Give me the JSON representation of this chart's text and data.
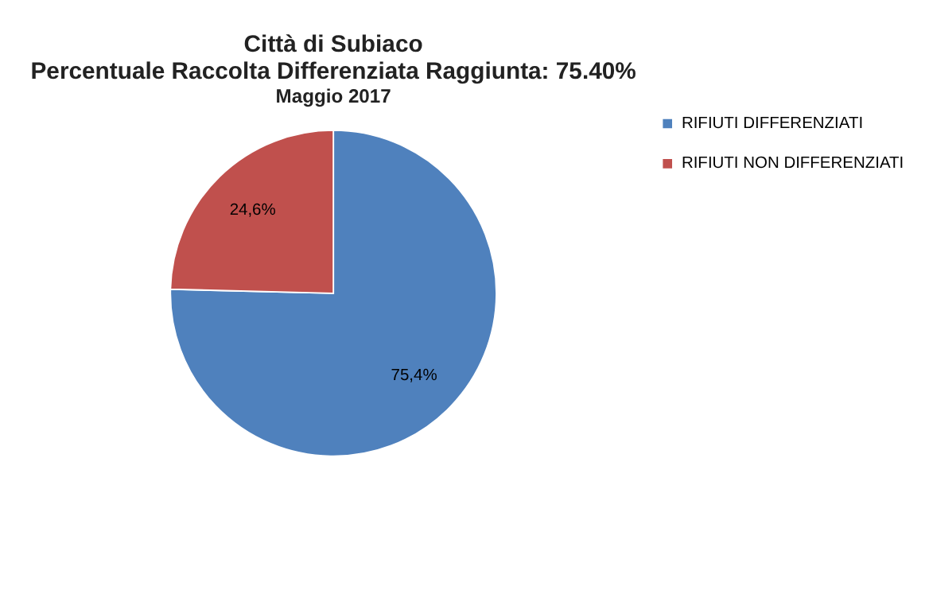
{
  "chart_data": {
    "type": "pie",
    "title": "Città di Subiaco",
    "subtitle": "Percentuale Raccolta Differenziata Raggiunta: 75.40%",
    "annotations": [
      "Maggio 2017"
    ],
    "categories": [
      "RIFIUTI  DIFFERENZIATI",
      "RIFIUTI  NON  DIFFERENZIATI"
    ],
    "values": [
      75.4,
      24.6
    ],
    "colors": [
      "#4f81bd",
      "#c0504d"
    ],
    "value_labels": [
      "75,4%",
      "24,6%"
    ],
    "legend": "right"
  }
}
